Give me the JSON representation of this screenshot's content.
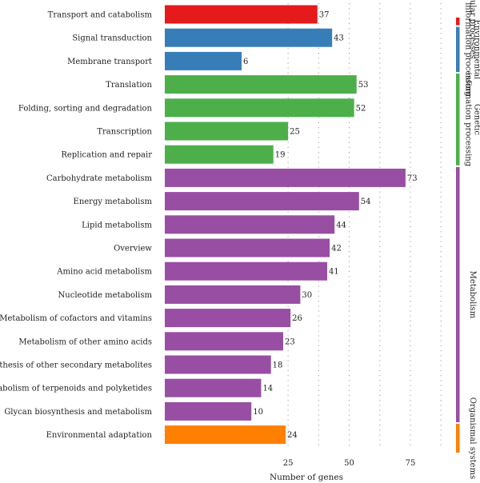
{
  "chart_data": {
    "type": "bar",
    "orientation": "horizontal",
    "xlabel": "Number of genes",
    "xlim": [
      -28,
      92
    ],
    "xticks": [
      25,
      50,
      75
    ],
    "grid": true,
    "categories": [
      "Transport and catabolism",
      "Signal transduction",
      "Membrane transport",
      "Translation",
      "Folding, sorting and degradation",
      "Transcription",
      "Replication and repair",
      "Carbohydrate metabolism",
      "Energy metabolism",
      "Lipid metabolism",
      "Overview",
      "Amino acid metabolism",
      "Nucleotide metabolism",
      "Metabolism of cofactors and vitamins",
      "Metabolism of other amino acids",
      "Biosynthesis of other secondary metabolites",
      "Metabolism of terpenoids and polyketides",
      "Glycan biosynthesis and metabolism",
      "Environmental adaptation"
    ],
    "values": [
      37,
      43,
      6,
      53,
      52,
      25,
      19,
      73,
      54,
      44,
      42,
      41,
      30,
      26,
      23,
      18,
      14,
      10,
      24
    ],
    "value_labels": [
      "37",
      "43",
      "6",
      "53",
      "52",
      "25",
      "19",
      "73",
      "54",
      "44",
      "42",
      "41",
      "30",
      "26",
      "23",
      "18",
      "14",
      "10",
      "24"
    ],
    "groups": [
      {
        "name": "Cellular processes",
        "lines": [
          "Cellular processes"
        ],
        "color": "#e41a1c",
        "indices": [
          0
        ]
      },
      {
        "name": "Environmental information processing",
        "lines": [
          "Environmental",
          "information processing"
        ],
        "color": "#377eb8",
        "indices": [
          1,
          2
        ]
      },
      {
        "name": "Genetic information processing",
        "lines": [
          "Genetic",
          "information processing"
        ],
        "color": "#4daf4a",
        "indices": [
          3,
          4,
          5,
          6
        ]
      },
      {
        "name": "Metabolism",
        "lines": [
          "Metabolism"
        ],
        "color": "#984ea3",
        "indices": [
          7,
          8,
          9,
          10,
          11,
          12,
          13,
          14,
          15,
          16,
          17
        ]
      },
      {
        "name": "Organismal systems",
        "lines": [
          "Organismal systems"
        ],
        "color": "#ff7f00",
        "indices": [
          18
        ]
      }
    ]
  }
}
